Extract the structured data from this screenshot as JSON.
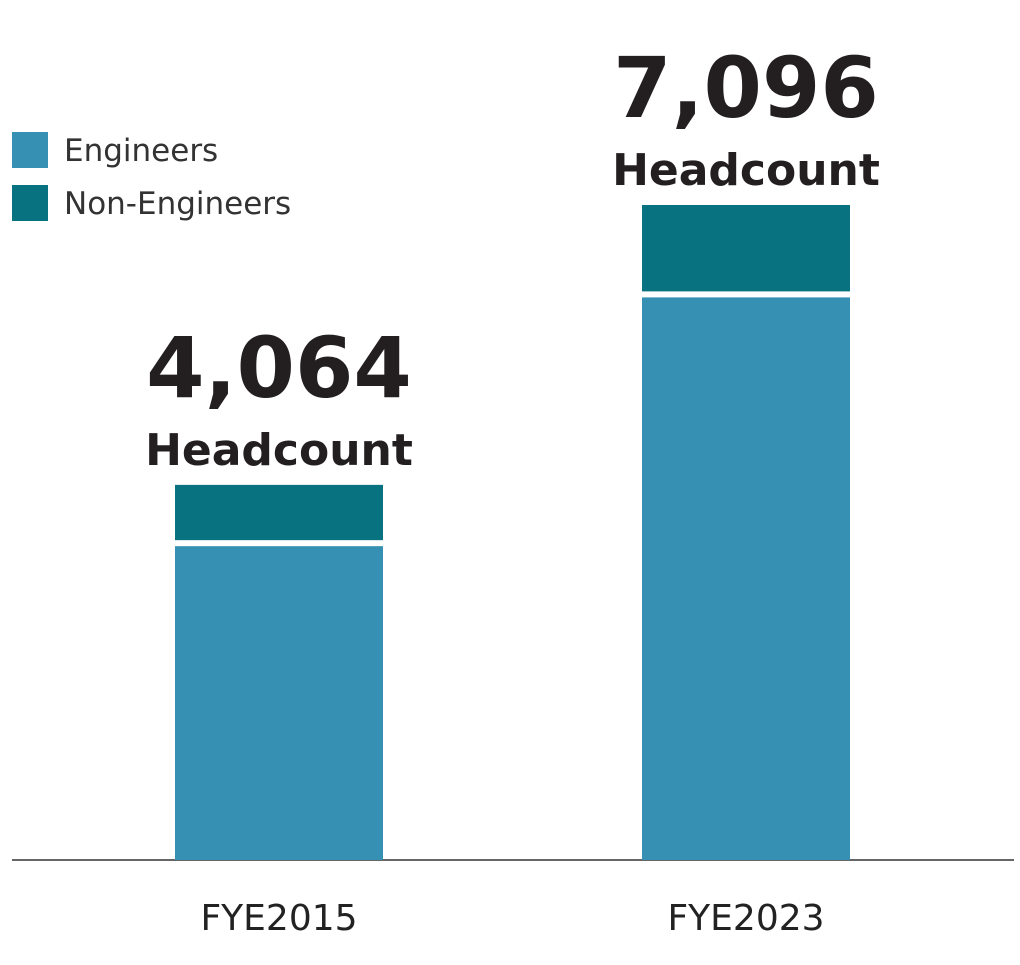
{
  "chart_data": {
    "type": "bar",
    "stacked": true,
    "categories": [
      "FYE2015",
      "FYE2023"
    ],
    "series": [
      {
        "name": "Engineers",
        "color": "#3590b3",
        "values": [
          3400,
          6095
        ]
      },
      {
        "name": "Non-Engineers",
        "color": "#087281",
        "values": [
          664,
          1001
        ]
      }
    ],
    "totals": [
      4064,
      7096
    ],
    "total_labels": [
      "4,064",
      "7,096"
    ],
    "total_unit": "Headcount",
    "ylim": [
      0,
      7500
    ],
    "legend": "top-left",
    "grid": false,
    "title": "",
    "xlabel": "",
    "ylabel": ""
  }
}
